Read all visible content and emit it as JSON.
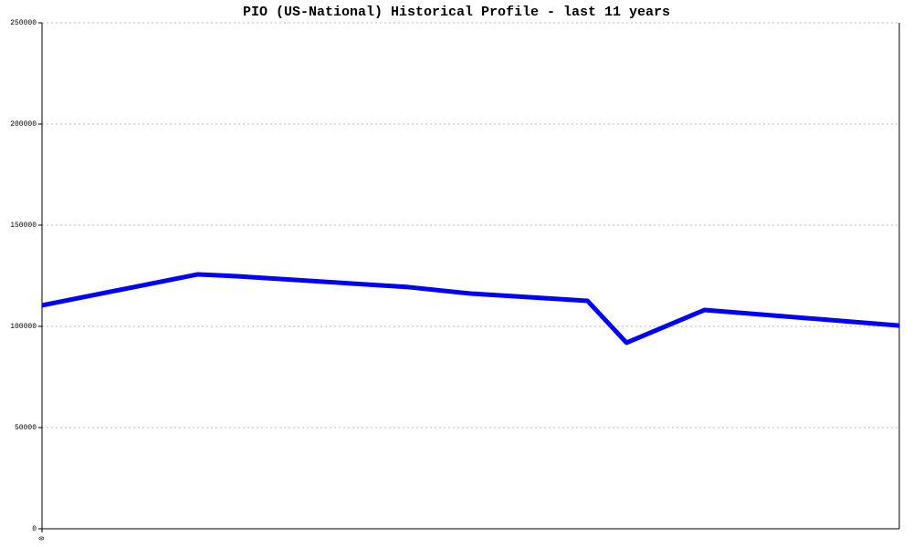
{
  "chart_data": {
    "type": "line",
    "title": "PIO (US-National) Historical Profile - last 11 years",
    "x": [
      0,
      2,
      2.5,
      4.7,
      5.5,
      7,
      7.5,
      8.5,
      11
    ],
    "series": [
      {
        "name": "PIO",
        "color": "#0000ff",
        "values": [
          110400,
          125700,
          124800,
          119400,
          116200,
          112600,
          91900,
          108100,
          100400
        ]
      }
    ],
    "xlim": [
      0,
      11
    ],
    "xticks": [
      0
    ],
    "ylim": [
      0,
      250000
    ],
    "yticks": [
      0,
      50000,
      100000,
      150000,
      200000,
      250000
    ],
    "grid": true,
    "legend": false
  }
}
